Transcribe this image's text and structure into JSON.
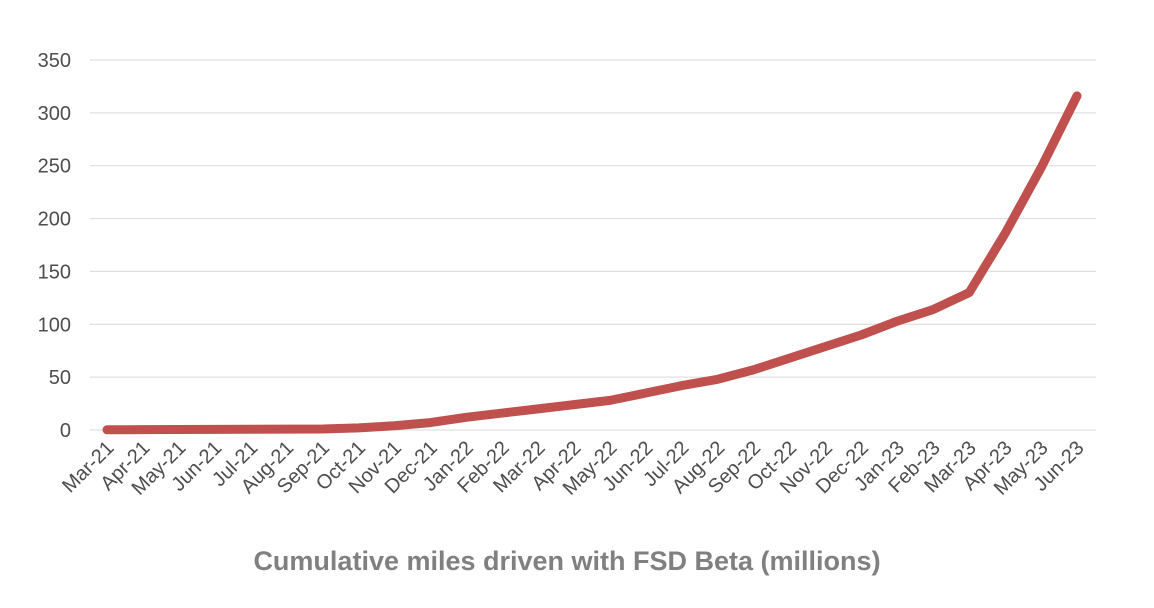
{
  "chart_data": {
    "type": "line",
    "title": "Cumulative miles driven with FSD Beta (millions)",
    "xlabel": "",
    "ylabel": "",
    "ylim": [
      0,
      350
    ],
    "yticks": [
      0,
      50,
      100,
      150,
      200,
      250,
      300,
      350
    ],
    "grid": true,
    "legend": "none",
    "categories": [
      "Mar-21",
      "Apr-21",
      "May-21",
      "Jun-21",
      "Jul-21",
      "Aug-21",
      "Sep-21",
      "Oct-21",
      "Nov-21",
      "Dec-21",
      "Jan-22",
      "Feb-22",
      "Mar-22",
      "Apr-22",
      "May-22",
      "Jun-22",
      "Jul-22",
      "Aug-22",
      "Sep-22",
      "Oct-22",
      "Nov-22",
      "Dec-22",
      "Jan-23",
      "Feb-23",
      "Mar-23",
      "Apr-23",
      "May-23",
      "Jun-23"
    ],
    "series": [
      {
        "name": "",
        "color": "#c0504d",
        "values": [
          0.2,
          0.3,
          0.5,
          0.6,
          0.7,
          0.8,
          1,
          2,
          4,
          7,
          12,
          16,
          20,
          24,
          28,
          35,
          42,
          48,
          57,
          68,
          79,
          90,
          103,
          114,
          130,
          186,
          248,
          316
        ]
      }
    ]
  }
}
